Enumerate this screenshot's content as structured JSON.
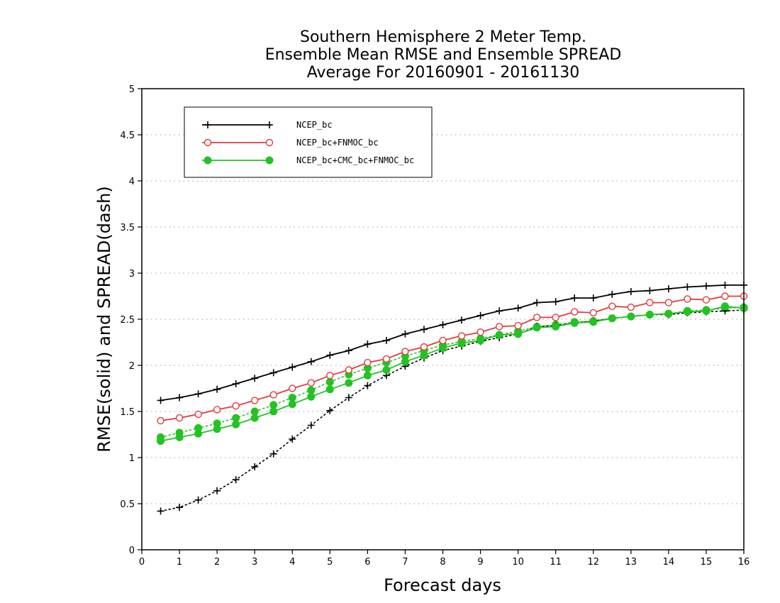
{
  "chart_data": {
    "type": "line",
    "title_lines": [
      "Southern Hemisphere 2 Meter Temp.",
      "Ensemble Mean RMSE and Ensemble SPREAD",
      "Average For 20160901 - 20161130"
    ],
    "xlabel": "Forecast days",
    "ylabel": "RMSE(solid) and SPREAD(dash)",
    "xlim": [
      0,
      16
    ],
    "ylim": [
      0,
      5
    ],
    "xticks": [
      "0",
      "1",
      "2",
      "3",
      "4",
      "5",
      "6",
      "7",
      "8",
      "9",
      "10",
      "11",
      "12",
      "13",
      "14",
      "15",
      "16"
    ],
    "yticks": [
      "0",
      "0.5",
      "1",
      "1.5",
      "2",
      "2.5",
      "3",
      "3.5",
      "4",
      "4.5",
      "5"
    ],
    "grid": "horizontal dotted",
    "legend_position": "top-left",
    "x": [
      0.5,
      1,
      1.5,
      2,
      2.5,
      3,
      3.5,
      4,
      4.5,
      5,
      5.5,
      6,
      6.5,
      7,
      7.5,
      8,
      8.5,
      9,
      9.5,
      10,
      10.5,
      11,
      11.5,
      12,
      12.5,
      13,
      13.5,
      14,
      14.5,
      15,
      15.5,
      16
    ],
    "series": [
      {
        "name": "NCEP_bc",
        "color": "#000000",
        "marker": "plus",
        "rmse": [
          1.62,
          1.65,
          1.69,
          1.74,
          1.8,
          1.86,
          1.92,
          1.98,
          2.04,
          2.11,
          2.16,
          2.23,
          2.27,
          2.34,
          2.39,
          2.44,
          2.49,
          2.54,
          2.59,
          2.62,
          2.68,
          2.69,
          2.73,
          2.73,
          2.77,
          2.8,
          2.81,
          2.83,
          2.85,
          2.86,
          2.87,
          2.87
        ],
        "spread": [
          0.42,
          0.46,
          0.54,
          0.64,
          0.76,
          0.9,
          1.04,
          1.2,
          1.35,
          1.51,
          1.65,
          1.78,
          1.89,
          1.99,
          2.08,
          2.16,
          2.21,
          2.26,
          2.3,
          2.34,
          2.42,
          2.43,
          2.46,
          2.48,
          2.51,
          2.53,
          2.55,
          2.55,
          2.57,
          2.58,
          2.59,
          2.6
        ]
      },
      {
        "name": "NCEP_bc+FNMOC_bc",
        "color": "#e33b3b",
        "marker": "open-circle",
        "rmse": [
          1.4,
          1.43,
          1.47,
          1.52,
          1.56,
          1.62,
          1.68,
          1.75,
          1.81,
          1.89,
          1.95,
          2.03,
          2.07,
          2.15,
          2.2,
          2.27,
          2.32,
          2.36,
          2.42,
          2.43,
          2.52,
          2.52,
          2.58,
          2.57,
          2.64,
          2.63,
          2.68,
          2.68,
          2.72,
          2.71,
          2.75,
          2.75
        ]
      },
      {
        "name": "NCEP_bc+CMC_bc+FNMOC_bc",
        "color": "#22c322",
        "marker": "filled-circle",
        "rmse": [
          1.18,
          1.22,
          1.26,
          1.31,
          1.36,
          1.43,
          1.5,
          1.58,
          1.66,
          1.74,
          1.81,
          1.89,
          1.95,
          2.04,
          2.11,
          2.19,
          2.24,
          2.27,
          2.33,
          2.34,
          2.41,
          2.42,
          2.46,
          2.47,
          2.51,
          2.53,
          2.55,
          2.56,
          2.58,
          2.59,
          2.64,
          2.62
        ],
        "spread": [
          1.22,
          1.27,
          1.32,
          1.37,
          1.43,
          1.5,
          1.57,
          1.65,
          1.73,
          1.82,
          1.9,
          1.97,
          2.03,
          2.1,
          2.16,
          2.22,
          2.26,
          2.29,
          2.33,
          2.37,
          2.42,
          2.44,
          2.47,
          2.48,
          2.51,
          2.53,
          2.55,
          2.56,
          2.59,
          2.6,
          2.62,
          2.63
        ]
      }
    ]
  }
}
